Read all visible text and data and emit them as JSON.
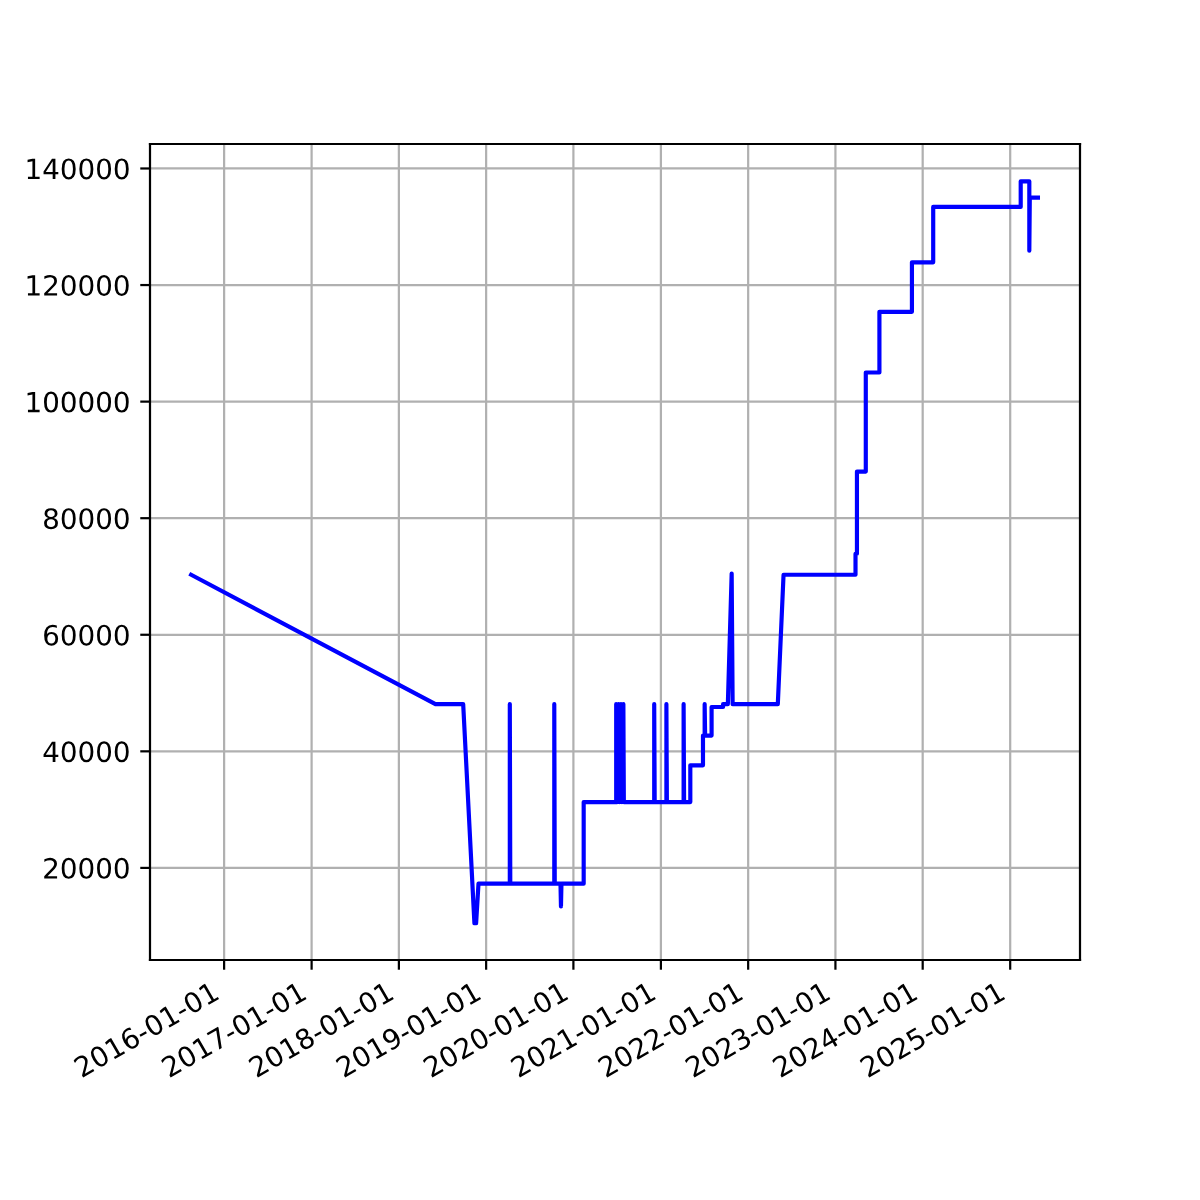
{
  "chart_data": {
    "type": "line",
    "x": [
      "2015-08-16",
      "2018-06-03",
      "2018-09-27",
      "2018-11-13",
      "2018-11-20",
      "2018-11-30",
      "2019-04-10",
      "2019-04-10",
      "2019-04-12",
      "2019-10-13",
      "2019-10-13",
      "2019-10-15",
      "2019-11-08",
      "2019-11-10",
      "2019-11-12",
      "2020-02-13",
      "2020-02-13",
      "2020-06-28",
      "2020-06-28",
      "2020-07-02",
      "2020-07-08",
      "2020-07-12",
      "2020-07-18",
      "2020-07-22",
      "2020-07-28",
      "2020-07-30",
      "2020-12-04",
      "2020-12-04",
      "2020-12-06",
      "2021-01-24",
      "2021-01-24",
      "2021-01-26",
      "2021-04-06",
      "2021-04-06",
      "2021-04-08",
      "2021-05-04",
      "2021-05-04",
      "2021-06-26",
      "2021-06-26",
      "2021-07-03",
      "2021-07-03",
      "2021-07-05",
      "2021-08-01",
      "2021-08-01",
      "2021-09-18",
      "2021-09-18",
      "2021-10-08",
      "2021-10-24",
      "2021-10-28",
      "2022-05-05",
      "2022-05-29",
      "2023-03-26",
      "2023-03-26",
      "2023-04-01",
      "2023-04-01",
      "2023-05-08",
      "2023-05-08",
      "2023-07-04",
      "2023-07-04",
      "2023-11-17",
      "2023-11-17",
      "2024-02-14",
      "2024-02-14",
      "2025-02-14",
      "2025-02-14",
      "2025-03-22",
      "2025-03-22",
      "2025-03-24",
      "2025-04-27"
    ],
    "series": [
      {
        "color": "#0000ff",
        "values": [
          70300,
          48100,
          48100,
          10500,
          10500,
          17300,
          17300,
          48100,
          17300,
          17300,
          48100,
          17300,
          17300,
          13400,
          17300,
          17300,
          31300,
          31300,
          48100,
          31300,
          48100,
          31300,
          48100,
          31300,
          48100,
          31300,
          31300,
          48100,
          31300,
          31300,
          48100,
          31300,
          31300,
          48100,
          31300,
          31300,
          37600,
          37600,
          42700,
          42700,
          48100,
          42700,
          42700,
          47600,
          47600,
          48100,
          48100,
          70500,
          48100,
          48100,
          70300,
          70300,
          73900,
          73900,
          88000,
          88000,
          105000,
          105000,
          115400,
          115400,
          123900,
          123900,
          133400,
          133400,
          137800,
          137800,
          125900,
          135000,
          135000
        ]
      }
    ],
    "xlim": [
      "2015-02-25",
      "2025-10-20"
    ],
    "xticks": [
      "2016-01-01",
      "2017-01-01",
      "2018-01-01",
      "2019-01-01",
      "2020-01-01",
      "2021-01-01",
      "2022-01-01",
      "2023-01-01",
      "2024-01-01",
      "2025-01-01"
    ],
    "ylim": [
      4200,
      144200
    ],
    "yticks": [
      20000,
      40000,
      60000,
      80000,
      100000,
      120000,
      140000
    ],
    "grid": true
  }
}
